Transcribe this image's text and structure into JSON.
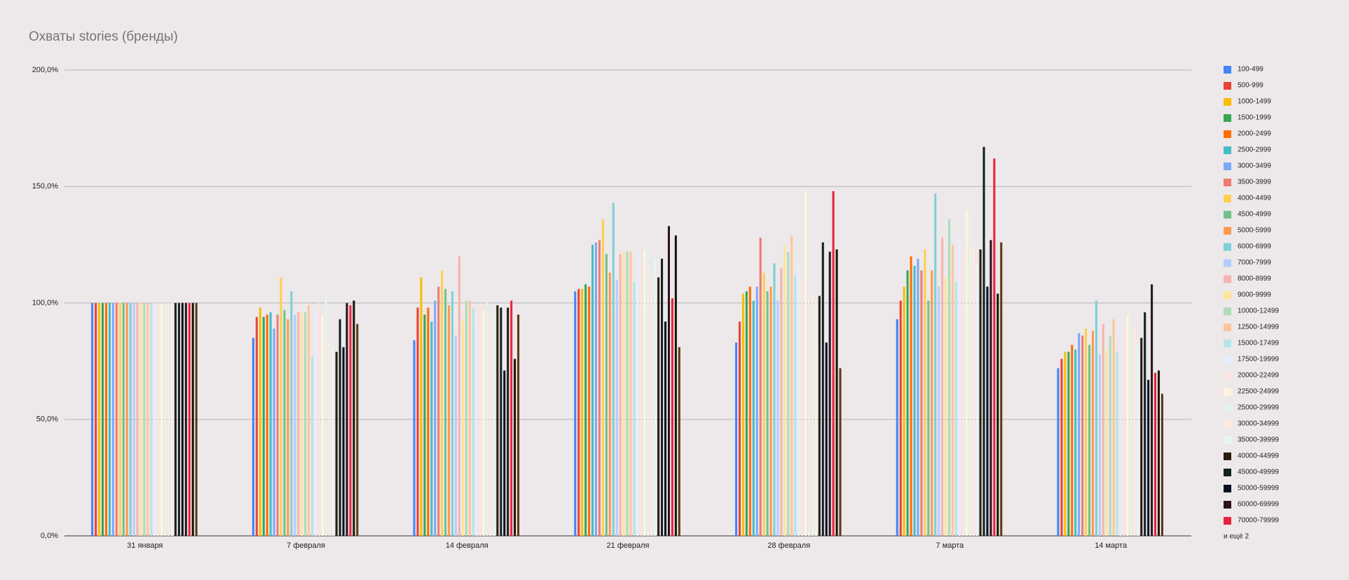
{
  "chart_data": {
    "type": "bar",
    "title": "Охваты stories (бренды)",
    "categories": [
      "31 января",
      "7 февраля",
      "14 февраля",
      "21 февраля",
      "28 февраля",
      "7 марта",
      "14 марта"
    ],
    "ylim": [
      0,
      200
    ],
    "yticks": [
      {
        "value": 0,
        "label": "0,0%"
      },
      {
        "value": 50,
        "label": "50,0%"
      },
      {
        "value": 100,
        "label": "100,0%"
      },
      {
        "value": 150,
        "label": "150,0%"
      },
      {
        "value": 200,
        "label": "200,0%"
      }
    ],
    "grid": true,
    "legend": "right",
    "legend_more": "и ещё 2",
    "series": [
      {
        "name": "100-499",
        "color": "#4285f4",
        "values": [
          100,
          85,
          84,
          105,
          83,
          93,
          72
        ]
      },
      {
        "name": "500-999",
        "color": "#ea4335",
        "values": [
          100,
          94,
          98,
          106,
          92,
          101,
          76
        ]
      },
      {
        "name": "1000-1499",
        "color": "#fbbc04",
        "values": [
          100,
          98,
          111,
          106,
          104,
          107,
          79
        ]
      },
      {
        "name": "1500-1999",
        "color": "#34a853",
        "values": [
          100,
          94,
          95,
          108,
          105,
          114,
          79
        ]
      },
      {
        "name": "2000-2499",
        "color": "#ff6d01",
        "values": [
          100,
          95,
          98,
          107,
          107,
          120,
          82
        ]
      },
      {
        "name": "2500-2999",
        "color": "#46bdc6",
        "values": [
          100,
          96,
          92,
          125,
          101,
          116,
          80
        ]
      },
      {
        "name": "3000-3499",
        "color": "#7baaf7",
        "values": [
          100,
          89,
          101,
          126,
          107,
          119,
          87
        ]
      },
      {
        "name": "3500-3999",
        "color": "#f07b72",
        "values": [
          100,
          95,
          107,
          127,
          128,
          114,
          86
        ]
      },
      {
        "name": "4000-4499",
        "color": "#fcd04f",
        "values": [
          100,
          111,
          114,
          136,
          113,
          123,
          89
        ]
      },
      {
        "name": "4500-4999",
        "color": "#71c287",
        "values": [
          100,
          97,
          106,
          121,
          105,
          101,
          82
        ]
      },
      {
        "name": "5000-5999",
        "color": "#ff994d",
        "values": [
          100,
          93,
          99,
          113,
          107,
          114,
          88
        ]
      },
      {
        "name": "6000-6999",
        "color": "#7ed1d7",
        "values": [
          100,
          105,
          105,
          143,
          117,
          147,
          101
        ]
      },
      {
        "name": "7000-7999",
        "color": "#b3cefb",
        "values": [
          100,
          95,
          86,
          110,
          101,
          107,
          78
        ]
      },
      {
        "name": "8000-8999",
        "color": "#f7b4ae",
        "values": [
          100,
          96,
          120,
          121,
          115,
          128,
          91
        ]
      },
      {
        "name": "9000-9999",
        "color": "#fde49b",
        "values": [
          100,
          96,
          93,
          122,
          125,
          111,
          80
        ]
      },
      {
        "name": "10000-12499",
        "color": "#aedcba",
        "values": [
          100,
          96,
          101,
          122,
          122,
          136,
          86
        ]
      },
      {
        "name": "12500-14999",
        "color": "#ffc599",
        "values": [
          100,
          99,
          101,
          122,
          129,
          125,
          93
        ]
      },
      {
        "name": "15000-17499",
        "color": "#b5e5e8",
        "values": [
          100,
          77,
          98,
          109,
          112,
          109,
          79
        ]
      },
      {
        "name": "17500-19999",
        "color": "#e6eefb",
        "values": [
          100,
          97,
          89,
          123,
          116,
          128,
          90
        ]
      },
      {
        "name": "20000-22499",
        "color": "#fbe5e3",
        "values": [
          100,
          100,
          100,
          116,
          110,
          122,
          89
        ]
      },
      {
        "name": "22500-24999",
        "color": "#fff5dc",
        "values": [
          100,
          95,
          97,
          123,
          148,
          140,
          95
        ]
      },
      {
        "name": "25000-29999",
        "color": "#e4f3e8",
        "values": [
          100,
          104,
          101,
          125,
          101,
          138,
          88
        ]
      },
      {
        "name": "30000-34999",
        "color": "#ffeadd",
        "values": [
          100,
          84,
          95,
          112,
          103,
          124,
          89
        ]
      },
      {
        "name": "35000-39999",
        "color": "#e6f5f6",
        "values": [
          100,
          82,
          97,
          119,
          101,
          117,
          82
        ]
      },
      {
        "name": "40000-44999",
        "color": "#2a1d0b",
        "values": [
          100,
          79,
          99,
          111,
          103,
          123,
          85
        ]
      },
      {
        "name": "45000-49999",
        "color": "#0f2222",
        "values": [
          100,
          93,
          98,
          119,
          126,
          167,
          96
        ]
      },
      {
        "name": "50000-59999",
        "color": "#0b0f22",
        "values": [
          100,
          81,
          71,
          92,
          83,
          107,
          67
        ]
      },
      {
        "name": "60000-69999",
        "color": "#2a1420",
        "values": [
          100,
          100,
          98,
          133,
          122,
          127,
          108
        ]
      },
      {
        "name": "70000-79999",
        "color": "#e8233a",
        "values": [
          100,
          99,
          101,
          102,
          148,
          162,
          70
        ]
      },
      {
        "color": "#1c1408",
        "values": [
          100,
          101,
          76,
          129,
          123,
          104,
          71
        ]
      },
      {
        "color": "#5b3a14",
        "values": [
          100,
          91,
          95,
          81,
          72,
          126,
          61
        ]
      }
    ]
  }
}
